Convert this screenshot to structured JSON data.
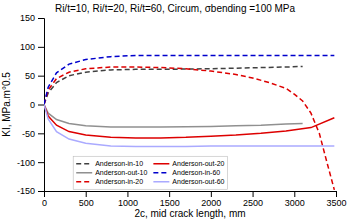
{
  "chart_data": {
    "type": "line",
    "title": "Ri/t=10, Ri/t=20, Ri/t=60, Circum, σbending =100 MPa",
    "xlabel": "2c, mid crack length, mm",
    "ylabel": "KI, MPa.m°0.5",
    "xlim": [
      0,
      3500
    ],
    "ylim": [
      -150,
      150
    ],
    "xticks": [
      0,
      500,
      1000,
      1500,
      2000,
      2500,
      3000,
      3500
    ],
    "yticks": [
      -150,
      -100,
      -50,
      0,
      50,
      100,
      150
    ],
    "grid": false,
    "legend": "lower left",
    "series": [
      {
        "name": "Anderson-in-10",
        "color": "#404040",
        "line_style": "dashed",
        "x": [
          0,
          50,
          150,
          300,
          500,
          800,
          1100,
          1400,
          1700,
          2000,
          2300,
          2600,
          2900,
          3100
        ],
        "values": [
          0,
          20,
          38,
          50,
          56,
          60,
          61,
          61,
          61.5,
          62,
          63,
          64,
          65,
          66
        ]
      },
      {
        "name": "Anderson-out-10",
        "color": "#909090",
        "line_style": "solid",
        "x": [
          0,
          50,
          150,
          300,
          500,
          800,
          1100,
          1400,
          1700,
          2000,
          2300,
          2600,
          2900,
          3100
        ],
        "values": [
          0,
          -15,
          -26,
          -33,
          -37,
          -39,
          -39,
          -39,
          -38.5,
          -38,
          -37,
          -36,
          -34,
          -33
        ]
      },
      {
        "name": "Anderson-in-20",
        "color": "#dd0000",
        "line_style": "dashed",
        "x": [
          0,
          50,
          150,
          300,
          500,
          800,
          1100,
          1400,
          1700,
          2000,
          2300,
          2500,
          2700,
          2900,
          3000,
          3100,
          3200,
          3300,
          3400,
          3480
        ],
        "values": [
          0,
          25,
          45,
          56,
          62,
          65,
          65,
          64,
          62,
          58,
          52,
          46,
          38,
          28,
          18,
          6,
          -15,
          -50,
          -105,
          -148
        ]
      },
      {
        "name": "Anderson-out-20",
        "color": "#dd0000",
        "line_style": "solid",
        "x": [
          0,
          50,
          150,
          300,
          500,
          800,
          1100,
          1400,
          1700,
          2000,
          2300,
          2600,
          2900,
          3200,
          3480
        ],
        "values": [
          0,
          -20,
          -36,
          -47,
          -53,
          -57,
          -58,
          -58,
          -57,
          -55,
          -53,
          -50,
          -46,
          -40,
          -23
        ]
      },
      {
        "name": "Anderson-in-60",
        "color": "#0000cc",
        "line_style": "dashed",
        "x": [
          0,
          50,
          150,
          300,
          500,
          800,
          1100,
          1400,
          1700,
          2000,
          2300,
          2600,
          2900,
          3200,
          3480
        ],
        "values": [
          0,
          30,
          55,
          70,
          78,
          83,
          85,
          85,
          85,
          85,
          85,
          85,
          85,
          85,
          85
        ]
      },
      {
        "name": "Anderson-out-60",
        "color": "#aaaaff",
        "line_style": "solid",
        "x": [
          0,
          50,
          150,
          300,
          500,
          800,
          1100,
          1400,
          1700,
          2000,
          2300,
          2600,
          2900,
          3200,
          3480
        ],
        "values": [
          0,
          -25,
          -47,
          -60,
          -67,
          -72,
          -73,
          -73,
          -73,
          -72,
          -72,
          -72,
          -72,
          -72,
          -72
        ]
      }
    ]
  }
}
